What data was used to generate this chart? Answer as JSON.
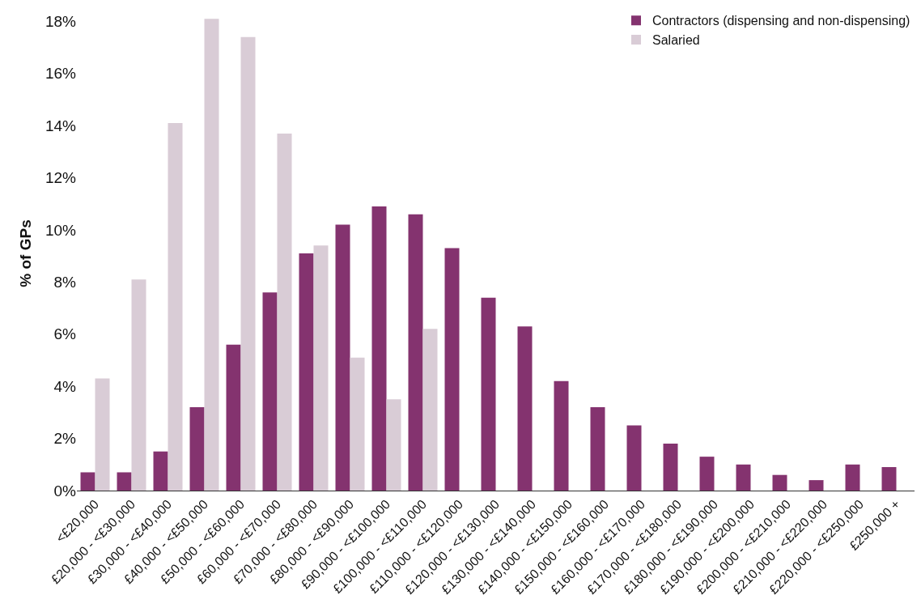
{
  "chart_data": {
    "type": "bar",
    "ylabel": "% of GPs",
    "categories": [
      "<£20,000",
      "£20,000 - <£30,000",
      "£30,000 - <£40,000",
      "£40,000 - <£50,000",
      "£50,000 - <£60,000",
      "£60,000 - <£70,000",
      "£70,000 - <£80,000",
      "£80,000 - <£90,000",
      "£90,000 - <£100,000",
      "£100,000 - <£110,000",
      "£110,000 - <£120,000",
      "£120,000 - <£130,000",
      "£130,000 - <£140,000",
      "£140,000 - <£150,000",
      "£150,000 - <£160,000",
      "£160,000 - <£170,000",
      "£170,000 - <£180,000",
      "£180,000 - <£190,000",
      "£190,000 - <£200,000",
      "£200,000 - <£210,000",
      "£210,000 - <£220,000",
      "£220,000 - <£250,000",
      "£250,000 +"
    ],
    "series": [
      {
        "name": "Contractors (dispensing and non-dispensing)",
        "color": "#84336f",
        "values": [
          0.7,
          0.7,
          1.5,
          3.2,
          5.6,
          7.6,
          9.1,
          10.2,
          10.9,
          10.6,
          9.3,
          7.4,
          6.3,
          4.2,
          3.2,
          2.5,
          1.8,
          1.3,
          1.0,
          0.6,
          0.4,
          1.0,
          0.9
        ]
      },
      {
        "name": "Salaried",
        "color": "#d9ccd6",
        "values": [
          4.3,
          8.1,
          14.1,
          18.1,
          17.4,
          13.7,
          9.4,
          5.1,
          3.5,
          6.2,
          null,
          null,
          null,
          null,
          null,
          null,
          null,
          null,
          null,
          null,
          null,
          null,
          null
        ]
      }
    ],
    "ylim": [
      0,
      18.2
    ],
    "yticks": [
      {
        "value": 0,
        "label": "0%"
      },
      {
        "value": 2,
        "label": "2%"
      },
      {
        "value": 4,
        "label": "4%"
      },
      {
        "value": 6,
        "label": "6%"
      },
      {
        "value": 8,
        "label": "8%"
      },
      {
        "value": 10,
        "label": "10%"
      },
      {
        "value": 12,
        "label": "12%"
      },
      {
        "value": 14,
        "label": "14%"
      },
      {
        "value": 16,
        "label": "16%"
      },
      {
        "value": 18,
        "label": "18%"
      }
    ],
    "grid": false,
    "legend": "top right"
  }
}
